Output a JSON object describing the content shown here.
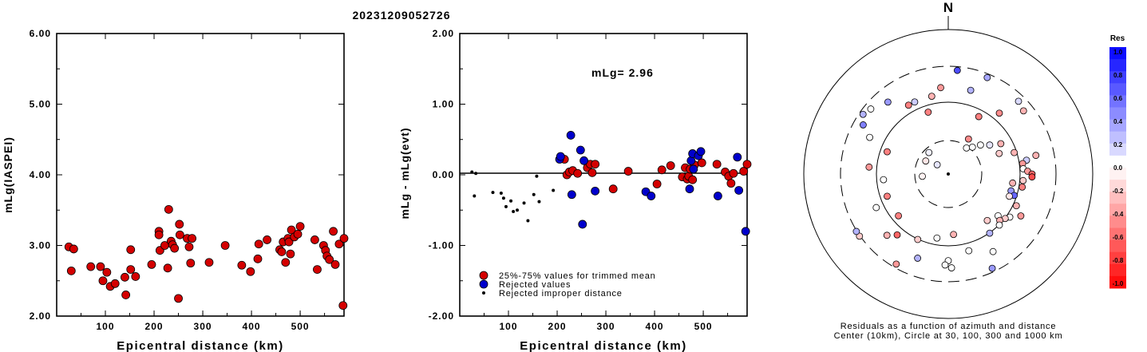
{
  "figure_title": "20231209052726",
  "colors": {
    "trimmed": "#d40000",
    "rejected": "#0000cc",
    "improper": "#000000",
    "scale_high": "#0000ff",
    "scale_low": "#ff0000"
  },
  "chart_data": [
    {
      "type": "scatter",
      "id": "mlg-vs-distance",
      "xlabel": "Epicentral distance (km)",
      "ylabel": "mLg(IASPEI)",
      "xlim": [
        0,
        590
      ],
      "ylim": [
        2.0,
        6.0
      ],
      "x_ticks": [
        100,
        200,
        300,
        400,
        500
      ],
      "y_ticks": [
        "2.00",
        "3.00",
        "4.00",
        "5.00",
        "6.00"
      ],
      "series": [
        {
          "points": [
            [
              25,
              2.98
            ],
            [
              30,
              2.64
            ],
            [
              35,
              2.95
            ],
            [
              70,
              2.7
            ],
            [
              90,
              2.7
            ],
            [
              95,
              2.5
            ],
            [
              103,
              2.62
            ],
            [
              110,
              2.42
            ],
            [
              120,
              2.46
            ],
            [
              140,
              2.55
            ],
            [
              142,
              2.3
            ],
            [
              152,
              2.94
            ],
            [
              152,
              2.66
            ],
            [
              162,
              2.56
            ],
            [
              195,
              2.73
            ],
            [
              210,
              3.2
            ],
            [
              210,
              3.15
            ],
            [
              212,
              2.93
            ],
            [
              222,
              3.0
            ],
            [
              228,
              2.68
            ],
            [
              230,
              3.51
            ],
            [
              235,
              3.06
            ],
            [
              238,
              3.01
            ],
            [
              242,
              2.96
            ],
            [
              250,
              2.25
            ],
            [
              252,
              3.3
            ],
            [
              253,
              3.15
            ],
            [
              268,
              3.1
            ],
            [
              272,
              2.98
            ],
            [
              275,
              2.75
            ],
            [
              278,
              3.1
            ],
            [
              313,
              2.76
            ],
            [
              346,
              3.0
            ],
            [
              380,
              2.72
            ],
            [
              398,
              2.63
            ],
            [
              413,
              2.81
            ],
            [
              415,
              3.02
            ],
            [
              432,
              3.08
            ],
            [
              458,
              2.94
            ],
            [
              462,
              2.91
            ],
            [
              465,
              3.05
            ],
            [
              470,
              2.76
            ],
            [
              475,
              3.1
            ],
            [
              477,
              3.05
            ],
            [
              480,
              2.88
            ],
            [
              482,
              3.22
            ],
            [
              488,
              3.12
            ],
            [
              495,
              3.16
            ],
            [
              500,
              3.27
            ],
            [
              530,
              3.08
            ],
            [
              535,
              2.66
            ],
            [
              548,
              3.0
            ],
            [
              552,
              2.93
            ],
            [
              555,
              2.85
            ],
            [
              560,
              2.8
            ],
            [
              568,
              3.2
            ],
            [
              572,
              2.73
            ],
            [
              580,
              3.02
            ],
            [
              588,
              2.15
            ],
            [
              595,
              3.1
            ]
          ]
        }
      ]
    },
    {
      "type": "scatter",
      "id": "residual-vs-distance",
      "xlabel": "Epicentral distance (km)",
      "ylabel": "mLg - mLg(evt)",
      "annotation": "mLg= 2.96",
      "xlim": [
        0,
        590
      ],
      "ylim": [
        -2.0,
        2.0
      ],
      "x_ticks": [
        100,
        200,
        300,
        400,
        500
      ],
      "y_ticks": [
        "-2.00",
        "-1.00",
        "0.00",
        "1.00",
        "2.00"
      ],
      "legend_position": "bottom-left",
      "series": [
        {
          "name": "25%-75% values for trimmed mean",
          "kind": "trimmed",
          "points": [
            [
              215,
              0.22
            ],
            [
              220,
              0.0
            ],
            [
              225,
              0.04
            ],
            [
              232,
              0.06
            ],
            [
              242,
              0.02
            ],
            [
              262,
              0.1
            ],
            [
              268,
              0.15
            ],
            [
              272,
              0.03
            ],
            [
              278,
              0.15
            ],
            [
              315,
              -0.2
            ],
            [
              346,
              0.05
            ],
            [
              405,
              -0.13
            ],
            [
              415,
              0.07
            ],
            [
              433,
              0.13
            ],
            [
              457,
              -0.03
            ],
            [
              463,
              0.1
            ],
            [
              467,
              -0.06
            ],
            [
              470,
              -0.02
            ],
            [
              473,
              0.08
            ],
            [
              478,
              -0.07
            ],
            [
              482,
              0.14
            ],
            [
              497,
              0.17
            ],
            [
              528,
              0.15
            ],
            [
              545,
              0.04
            ],
            [
              552,
              -0.02
            ],
            [
              557,
              -0.12
            ],
            [
              562,
              0.02
            ],
            [
              583,
              0.05
            ],
            [
              595,
              0.15
            ]
          ]
        },
        {
          "name": "Rejected values",
          "kind": "rejected",
          "points": [
            [
              205,
              0.22
            ],
            [
              207,
              0.26
            ],
            [
              228,
              0.56
            ],
            [
              230,
              -0.28
            ],
            [
              248,
              0.35
            ],
            [
              252,
              -0.7
            ],
            [
              255,
              0.2
            ],
            [
              278,
              -0.23
            ],
            [
              382,
              -0.24
            ],
            [
              393,
              -0.3
            ],
            [
              472,
              -0.2
            ],
            [
              475,
              0.2
            ],
            [
              478,
              0.3
            ],
            [
              480,
              0.08
            ],
            [
              490,
              0.27
            ],
            [
              495,
              0.33
            ],
            [
              530,
              -0.3
            ],
            [
              570,
              0.25
            ],
            [
              573,
              -0.22
            ],
            [
              587,
              -0.8
            ]
          ]
        },
        {
          "name": "Rejected improper distance",
          "kind": "improper",
          "points": [
            [
              25,
              0.04
            ],
            [
              30,
              -0.3
            ],
            [
              33,
              0.02
            ],
            [
              68,
              -0.25
            ],
            [
              85,
              -0.26
            ],
            [
              90,
              -0.33
            ],
            [
              95,
              -0.45
            ],
            [
              105,
              -0.37
            ],
            [
              110,
              -0.52
            ],
            [
              118,
              -0.5
            ],
            [
              132,
              -0.4
            ],
            [
              140,
              -0.65
            ],
            [
              152,
              -0.28
            ],
            [
              158,
              -0.02
            ],
            [
              163,
              -0.38
            ],
            [
              192,
              -0.22
            ]
          ]
        }
      ]
    },
    {
      "type": "scatter",
      "id": "azimuthal-residuals",
      "subtype": "polar",
      "north_label": "N",
      "caption_line1": "Residuals as a function of azimuth and distance",
      "caption_line2": "Center (10km), Circle at 30, 100, 300 and 1000 km",
      "rings_km": [
        30,
        100,
        300,
        1000
      ],
      "points": [
        [
          -95,
          0.18,
          -0.05
        ],
        [
          -60,
          0.18,
          -0.1
        ],
        [
          -50,
          0.1,
          0.1
        ],
        [
          -42,
          0.2,
          0.05
        ],
        [
          30,
          0.28,
          -0.45
        ],
        [
          35,
          0.22,
          0.0
        ],
        [
          42,
          0.25,
          0.0
        ],
        [
          48,
          0.3,
          0.0
        ],
        [
          55,
          0.35,
          0.1
        ],
        [
          60,
          0.42,
          -0.3
        ],
        [
          68,
          0.38,
          -0.2
        ],
        [
          72,
          0.48,
          -0.3
        ],
        [
          78,
          0.62,
          -0.3
        ],
        [
          80,
          0.55,
          0.2
        ],
        [
          82,
          0.52,
          -0.4
        ],
        [
          86,
          0.52,
          0.0
        ],
        [
          88,
          0.55,
          -0.4
        ],
        [
          90,
          0.58,
          -0.6
        ],
        [
          92,
          0.58,
          -0.7
        ],
        [
          95,
          0.52,
          -0.2
        ],
        [
          98,
          0.45,
          -0.3
        ],
        [
          100,
          0.52,
          -0.5
        ],
        [
          105,
          0.45,
          0.4
        ],
        [
          108,
          0.48,
          0.6
        ],
        [
          110,
          0.45,
          -0.1
        ],
        [
          115,
          0.52,
          -0.3
        ],
        [
          120,
          0.58,
          -0.4
        ],
        [
          125,
          0.52,
          0.0
        ],
        [
          128,
          0.5,
          -0.2
        ],
        [
          130,
          0.45,
          0.0
        ],
        [
          132,
          0.48,
          -0.3
        ],
        [
          135,
          0.5,
          0.0
        ],
        [
          140,
          0.42,
          -0.2
        ],
        [
          145,
          0.5,
          0.3
        ],
        [
          150,
          0.62,
          0.0
        ],
        [
          155,
          0.72,
          0.4
        ],
        [
          165,
          0.55,
          0.0
        ],
        [
          175,
          0.42,
          -0.3
        ],
        [
          178,
          0.65,
          0.0
        ],
        [
          180,
          0.6,
          0.0
        ],
        [
          182,
          0.63,
          0.0
        ],
        [
          190,
          0.45,
          0.0
        ],
        [
          200,
          0.62,
          0.3
        ],
        [
          205,
          0.5,
          -0.2
        ],
        [
          210,
          0.72,
          -0.4
        ],
        [
          220,
          0.55,
          -0.6
        ],
        [
          225,
          0.6,
          -0.3
        ],
        [
          230,
          0.45,
          -0.5
        ],
        [
          235,
          0.75,
          -0.2
        ],
        [
          238,
          0.75,
          0.3
        ],
        [
          245,
          0.55,
          0.0
        ],
        [
          250,
          0.45,
          -0.5
        ],
        [
          265,
          0.45,
          0.0
        ],
        [
          275,
          0.55,
          -0.4
        ],
        [
          290,
          0.45,
          -0.5
        ],
        [
          295,
          0.6,
          0.0
        ],
        [
          300,
          0.68,
          0.5
        ],
        [
          305,
          0.72,
          0.3
        ],
        [
          310,
          0.7,
          0.0
        ],
        [
          320,
          0.65,
          0.4
        ],
        [
          330,
          0.55,
          -0.5
        ],
        [
          335,
          0.55,
          0.2
        ],
        [
          342,
          0.45,
          -0.5
        ],
        [
          348,
          0.55,
          -0.3
        ],
        [
          355,
          0.6,
          -0.4
        ],
        [
          5,
          0.72,
          0.7
        ],
        [
          15,
          0.6,
          0.3
        ],
        [
          22,
          0.72,
          0.35
        ],
        [
          28,
          0.45,
          -0.5
        ],
        [
          40,
          0.55,
          -0.45
        ],
        [
          44,
          0.7,
          0.15
        ],
        [
          50,
          0.68,
          -0.3
        ]
      ]
    },
    {
      "type": "heatmap",
      "id": "residual-color-scale",
      "title": "Res",
      "labels": [
        "1.0",
        "0.8",
        "0.6",
        "0.4",
        "0.2",
        "0.0",
        "-0.2",
        "-0.4",
        "-0.6",
        "-0.8",
        "-1.0"
      ]
    }
  ]
}
